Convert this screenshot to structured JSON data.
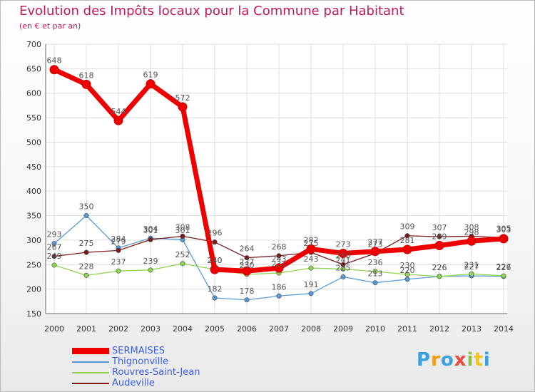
{
  "page": {
    "title": "Evolution des Impôts locaux pour la Commune par Habitant",
    "subtitle": "(en € et par an)",
    "logo": "Proxiti"
  },
  "chart_data": {
    "type": "line",
    "title": "Evolution des Impôts locaux pour la Commune par Habitant",
    "subtitle": "(en € et par an)",
    "x": [
      "2000",
      "2001",
      "2002",
      "2003",
      "2004",
      "2005",
      "2006",
      "2007",
      "2008",
      "2009",
      "2010",
      "2011",
      "2012",
      "2013",
      "2014"
    ],
    "ylim": [
      150,
      700
    ],
    "yticks": [
      150,
      200,
      250,
      300,
      350,
      400,
      450,
      500,
      550,
      600,
      650,
      700
    ],
    "grid": true,
    "legend_position": "bottom-left",
    "series": [
      {
        "name": "SERMAISES",
        "color": "#ee0000",
        "values": [
          648,
          618,
          544,
          619,
          572,
          240,
          237,
          243,
          282,
          273,
          277,
          281,
          289,
          298,
          303
        ]
      },
      {
        "name": "Thignonville",
        "color": "#5b9bd5",
        "values": [
          293,
          350,
          284,
          304,
          301,
          182,
          178,
          186,
          191,
          225,
          213,
          220,
          226,
          227,
          226
        ]
      },
      {
        "name": "Rouvres-Saint-Jean",
        "color": "#8fd650",
        "values": [
          249,
          228,
          237,
          239,
          252,
          240,
          230,
          233,
          243,
          241,
          236,
          230,
          226,
          231,
          227
        ]
      },
      {
        "name": "Audeville",
        "color": "#7a1a1a",
        "values": [
          267,
          275,
          279,
          301,
          308,
          296,
          264,
          268,
          275,
          250,
          273,
          309,
          307,
          308,
          305
        ]
      }
    ]
  },
  "legend": [
    {
      "label": "SERMAISES",
      "color": "#ee0000",
      "thick": true
    },
    {
      "label": "Thignonville",
      "color": "#5b9bd5",
      "thick": false
    },
    {
      "label": "Rouvres-Saint-Jean",
      "color": "#8fd650",
      "thick": false
    },
    {
      "label": "Audeville",
      "color": "#7a1a1a",
      "thick": false
    }
  ]
}
